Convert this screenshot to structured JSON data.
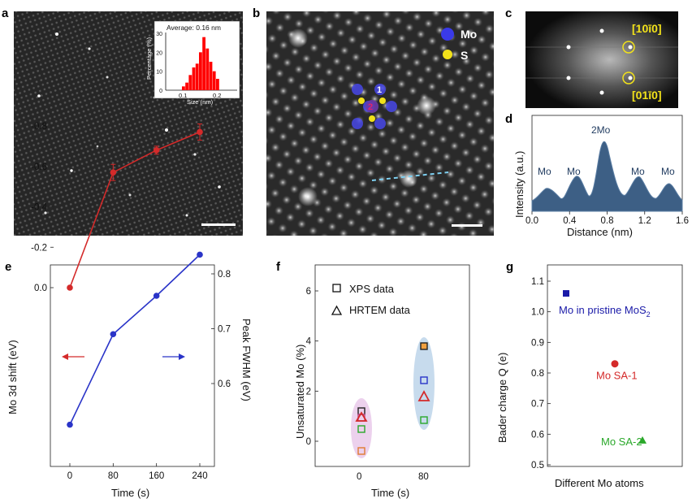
{
  "panels": {
    "a": {
      "label": "a",
      "inset": {
        "annotation": "Average: 0.16 nm",
        "xlabel": "Size (nm)",
        "ylabel": "Percentage (%)",
        "xticks": [
          "0.1",
          "0.2"
        ],
        "yticks": [
          "0",
          "10",
          "20",
          "30"
        ],
        "bars": [
          2,
          4,
          8,
          12,
          14,
          20,
          28,
          22,
          15,
          10,
          6
        ],
        "bar_color": "#ff0000"
      }
    },
    "b": {
      "label": "b",
      "legend": [
        {
          "name": "Mo",
          "color": "#3a3ae8"
        },
        {
          "name": "S",
          "color": "#f2e21a"
        }
      ],
      "site_labels": [
        "1",
        "2"
      ]
    },
    "c": {
      "label": "c",
      "dir1": "[10ī0]",
      "dir2": "[01ī0]"
    },
    "d": {
      "label": "d",
      "ylabel": "Intensity (a.u.)",
      "xlabel": "Distance (nm)",
      "xticks": [
        "0.0",
        "0.4",
        "0.8",
        "1.2",
        "1.6"
      ],
      "peak_labels": [
        "Mo",
        "Mo",
        "2Mo",
        "Mo",
        "Mo"
      ],
      "fill_color": "#3d5f85"
    },
    "e": {
      "label": "e",
      "xlabel": "Time (s)",
      "ylabel_left": "Mo 3d shift (eV)",
      "ylabel_right": "Peak FWHM (eV)",
      "xticks": [
        "0",
        "80",
        "160",
        "240"
      ],
      "yticks_left": [
        "0.0",
        "-0.2",
        "-0.4",
        "-0.6",
        "-0.8"
      ],
      "yticks_right": [
        "0.6",
        "0.7",
        "0.8"
      ],
      "red_series": {
        "x": [
          0,
          80,
          160,
          240
        ],
        "y": [
          0.0,
          -0.57,
          -0.68,
          -0.77
        ],
        "color": "#d42a2a"
      },
      "blue_series": {
        "x": [
          0,
          80,
          160,
          240
        ],
        "y": [
          0.525,
          0.69,
          0.76,
          0.835
        ],
        "color": "#2a34c8"
      }
    },
    "f": {
      "label": "f",
      "xlabel": "Time (s)",
      "ylabel": "Unsaturated Mo (%)",
      "xticks": [
        "0",
        "80"
      ],
      "yticks": [
        "0",
        "2",
        "4",
        "6"
      ],
      "legend": [
        "XPS data",
        "HRTEM data"
      ]
    },
    "g": {
      "label": "g",
      "xlabel": "Different Mo atoms",
      "ylabel": "Bader charge Q (e)",
      "yticks": [
        "0.5",
        "0.6",
        "0.7",
        "0.8",
        "0.9",
        "1.0",
        "1.1"
      ],
      "points": [
        {
          "name": "Mo in pristine MoS",
          "sub": "2",
          "value": 1.06,
          "color": "#1a1aa8"
        },
        {
          "name": "Mo SA-1",
          "value": 0.83,
          "color": "#d42a2a"
        },
        {
          "name": "Mo SA-2",
          "value": 0.58,
          "color": "#2aa82a"
        }
      ]
    }
  }
}
